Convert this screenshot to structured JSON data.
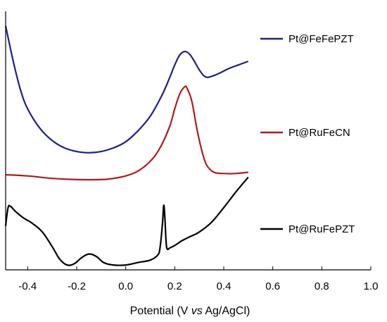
{
  "chart_data": {
    "type": "line",
    "title": "",
    "xlabel_parts": [
      "Potential (V ",
      "vs",
      " Ag/AgCl)"
    ],
    "ylabel": "",
    "xlim": [
      -0.49,
      1.0
    ],
    "x_ticks": [
      -0.4,
      -0.2,
      0.0,
      0.2,
      0.4,
      0.6,
      0.8,
      1.0
    ],
    "x_tick_labels": [
      "-0.4",
      "-0.2",
      "0.0",
      "0.2",
      "0.4",
      "0.6",
      "0.8",
      "1.0"
    ],
    "y_ticks": "none",
    "grid": false,
    "legend_position": "right",
    "series": [
      {
        "name": "Pt@FeFePZT",
        "color": "#1f1f8a",
        "x": [
          -0.49,
          -0.46,
          -0.43,
          -0.4,
          -0.35,
          -0.3,
          -0.25,
          -0.2,
          -0.15,
          -0.1,
          -0.05,
          0.0,
          0.05,
          0.1,
          0.15,
          0.18,
          0.2,
          0.22,
          0.24,
          0.26,
          0.28,
          0.3,
          0.32,
          0.34,
          0.38,
          0.42,
          0.46,
          0.5
        ],
        "y": [
          10.0,
          8.6,
          7.4,
          6.6,
          5.8,
          5.3,
          5.0,
          4.85,
          4.8,
          4.85,
          5.0,
          5.25,
          5.7,
          6.3,
          7.2,
          7.9,
          8.4,
          8.8,
          8.95,
          8.85,
          8.55,
          8.2,
          7.95,
          7.9,
          8.05,
          8.25,
          8.4,
          8.55
        ]
      },
      {
        "name": "Pt@RuFeCN",
        "color": "#b01c1c",
        "x": [
          -0.49,
          -0.4,
          -0.3,
          -0.2,
          -0.1,
          -0.05,
          0.0,
          0.05,
          0.1,
          0.14,
          0.18,
          0.2,
          0.22,
          0.24,
          0.25,
          0.27,
          0.29,
          0.31,
          0.33,
          0.36,
          0.4,
          0.45,
          0.5
        ],
        "y": [
          3.9,
          3.85,
          3.75,
          3.7,
          3.7,
          3.75,
          3.85,
          4.05,
          4.45,
          5.0,
          5.9,
          6.6,
          7.2,
          7.5,
          7.45,
          6.9,
          5.8,
          4.9,
          4.3,
          4.0,
          3.95,
          3.95,
          4.0
        ]
      },
      {
        "name": "Pt@RuFePZT",
        "color": "#000000",
        "x": [
          -0.49,
          -0.48,
          -0.47,
          -0.45,
          -0.42,
          -0.38,
          -0.34,
          -0.3,
          -0.27,
          -0.24,
          -0.21,
          -0.18,
          -0.15,
          -0.12,
          -0.09,
          -0.05,
          0.0,
          0.05,
          0.1,
          0.13,
          0.14,
          0.15,
          0.155,
          0.16,
          0.165,
          0.17,
          0.18,
          0.2,
          0.23,
          0.26,
          0.3,
          0.35,
          0.4,
          0.45,
          0.5
        ],
        "y": [
          1.8,
          2.55,
          2.6,
          2.4,
          2.15,
          1.9,
          1.55,
          0.95,
          0.45,
          0.2,
          0.25,
          0.5,
          0.65,
          0.55,
          0.3,
          0.2,
          0.2,
          0.3,
          0.4,
          0.6,
          0.9,
          1.9,
          2.65,
          2.1,
          1.1,
          0.85,
          0.9,
          1.0,
          1.2,
          1.35,
          1.55,
          1.95,
          2.55,
          3.2,
          3.8
        ]
      }
    ]
  }
}
